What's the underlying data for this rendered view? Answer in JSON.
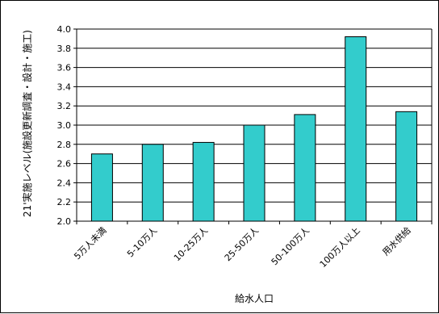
{
  "chart_data": {
    "type": "bar",
    "categories": [
      "5万人未満",
      "5-10万人",
      "10-25万人",
      "25-50万人",
      "50-100万人",
      "100万人以上",
      "用水供給"
    ],
    "values": [
      2.7,
      2.8,
      2.82,
      3.0,
      3.11,
      3.92,
      3.14
    ],
    "xlabel": "給水人口",
    "ylabel": "21'実施レベル(施設更新調査・設計・施工)",
    "ylim": [
      2.0,
      4.0
    ],
    "yticks": [
      "2.0",
      "2.2",
      "2.4",
      "2.6",
      "2.8",
      "3.0",
      "3.2",
      "3.4",
      "3.6",
      "3.8",
      "4.0"
    ],
    "grid": true,
    "legend": "none",
    "colors": {
      "bar": "#33CCCC",
      "bar_stroke": "#000000",
      "grid": "#000000"
    }
  }
}
